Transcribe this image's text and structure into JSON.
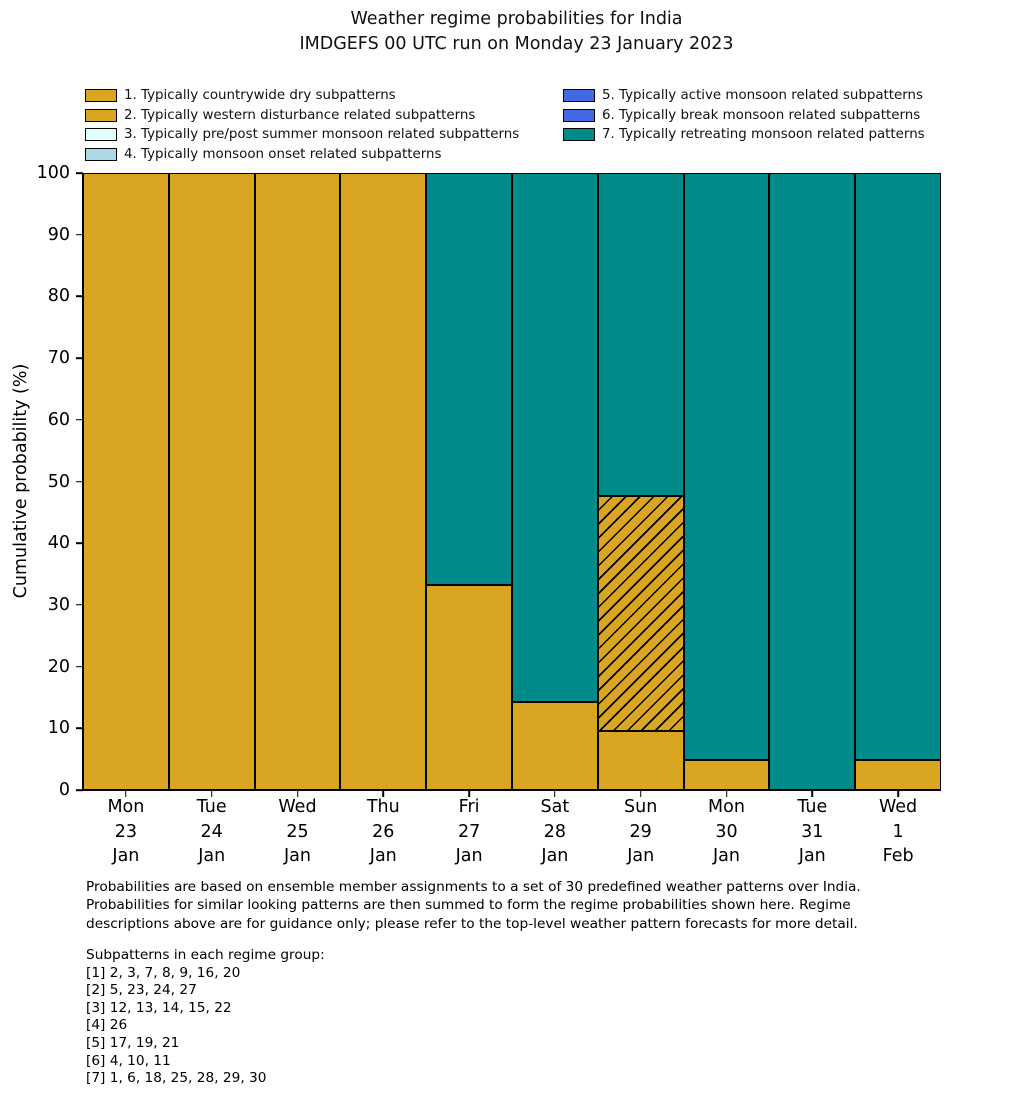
{
  "chart_data": {
    "type": "bar",
    "stacked": true,
    "title": "Weather regime probabilities for India",
    "subtitle": "IMDGEFS 00 UTC run on Monday 23 January 2023",
    "xlabel": "",
    "ylabel": "Cumulative probability (%)",
    "ylim": [
      0,
      100
    ],
    "yticks": [
      0,
      10,
      20,
      30,
      40,
      50,
      60,
      70,
      80,
      90,
      100
    ],
    "grid": false,
    "legend_position": "top",
    "bar_edge_color": "#000000",
    "categories": [
      [
        "Mon",
        "23",
        "Jan"
      ],
      [
        "Tue",
        "24",
        "Jan"
      ],
      [
        "Wed",
        "25",
        "Jan"
      ],
      [
        "Thu",
        "26",
        "Jan"
      ],
      [
        "Fri",
        "27",
        "Jan"
      ],
      [
        "Sat",
        "28",
        "Jan"
      ],
      [
        "Sun",
        "29",
        "Jan"
      ],
      [
        "Mon",
        "30",
        "Jan"
      ],
      [
        "Tue",
        "31",
        "Jan"
      ],
      [
        "Wed",
        "1",
        "Feb"
      ]
    ],
    "series": [
      {
        "name": "1. Typically countrywide dry subpatterns",
        "color": "#daa520",
        "hatch": false,
        "values": [
          100,
          100,
          100,
          100,
          33.3,
          14.3,
          9.5,
          4.8,
          0,
          4.8
        ]
      },
      {
        "name": "2. Typically western disturbance related subpatterns",
        "color": "#daa520",
        "hatch": true,
        "values": [
          0,
          0,
          0,
          0,
          0,
          0,
          38.1,
          0,
          0,
          0
        ]
      },
      {
        "name": "3. Typically pre/post summer monsoon related subpatterns",
        "color": "#e0ffff",
        "hatch": false,
        "values": [
          0,
          0,
          0,
          0,
          0,
          0,
          0,
          0,
          0,
          0
        ]
      },
      {
        "name": "4. Typically monsoon onset related subpatterns",
        "color": "#add8e6",
        "hatch": false,
        "values": [
          0,
          0,
          0,
          0,
          0,
          0,
          0,
          0,
          0,
          0
        ]
      },
      {
        "name": "5. Typically active monsoon related subpatterns",
        "color": "#4169e1",
        "hatch": false,
        "values": [
          0,
          0,
          0,
          0,
          0,
          0,
          0,
          0,
          0,
          0
        ]
      },
      {
        "name": "6. Typically break monsoon related subpatterns",
        "color": "#4169e1",
        "hatch": true,
        "values": [
          0,
          0,
          0,
          0,
          0,
          0,
          0,
          0,
          0,
          0
        ]
      },
      {
        "name": "7. Typically retreating monsoon related patterns",
        "color": "#008b8b",
        "hatch": false,
        "values": [
          0,
          0,
          0,
          0,
          66.7,
          85.7,
          52.4,
          95.2,
          100,
          95.2
        ]
      }
    ]
  },
  "legend": {
    "columns": [
      [
        0,
        1,
        2,
        3
      ],
      [
        4,
        5,
        6
      ]
    ]
  },
  "footer": {
    "lines": [
      "Probabilities are based on ensemble member assignments to a set of 30 predefined weather patterns over India.",
      "Probabilities for similar looking patterns are then summed to form the regime probabilities shown here. Regime",
      "descriptions above are for guidance only; please refer to the top-level weather pattern forecasts for more detail."
    ]
  },
  "subpatterns": {
    "heading": "Subpatterns in each regime group:",
    "lines": [
      "[1] 2, 3, 7, 8, 9, 16, 20",
      "[2] 5, 23, 24, 27",
      "[3] 12, 13, 14, 15, 22",
      "[4] 26",
      "[5] 17, 19, 21",
      "[6] 4, 10, 11",
      "[7] 1, 6, 18, 25, 28, 29, 30"
    ]
  }
}
